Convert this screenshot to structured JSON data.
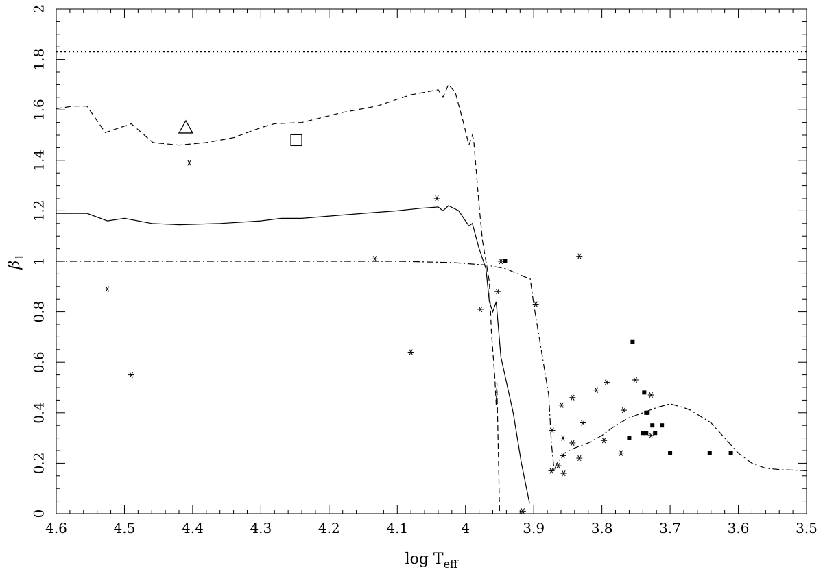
{
  "chart_data": {
    "type": "scatter",
    "title": "",
    "xlabel": {
      "main": "log T",
      "sub": "eff"
    },
    "ylabel": {
      "main": "β",
      "sub": "1"
    },
    "xlim": [
      4.6,
      3.5
    ],
    "ylim": [
      0,
      2
    ],
    "x_ticks": [
      4.6,
      4.5,
      4.4,
      4.3,
      4.2,
      4.1,
      4.0,
      3.9,
      3.8,
      3.7,
      3.6,
      3.5
    ],
    "x_tick_labels": [
      "4.6",
      "4.5",
      "4.4",
      "4.3",
      "4.2",
      "4.1",
      "4",
      "3.9",
      "3.8",
      "3.7",
      "3.6",
      "3.5"
    ],
    "y_ticks": [
      0,
      0.2,
      0.4,
      0.6,
      0.8,
      1.0,
      1.2,
      1.4,
      1.6,
      1.8,
      2.0
    ],
    "y_tick_labels": [
      "0",
      "0.2",
      "0.4",
      "0.6",
      "0.8",
      "1",
      "1.2",
      "1.4",
      "1.6",
      "1.8",
      "2"
    ],
    "grid": false,
    "series": [
      {
        "style": "solid",
        "points": [
          [
            4.6,
            1.19
          ],
          [
            4.555,
            1.19
          ],
          [
            4.525,
            1.16
          ],
          [
            4.5,
            1.17
          ],
          [
            4.46,
            1.15
          ],
          [
            4.42,
            1.145
          ],
          [
            4.36,
            1.15
          ],
          [
            4.3,
            1.16
          ],
          [
            4.27,
            1.17
          ],
          [
            4.24,
            1.17
          ],
          [
            4.15,
            1.19
          ],
          [
            4.1,
            1.2
          ],
          [
            4.065,
            1.21
          ],
          [
            4.04,
            1.215
          ],
          [
            4.033,
            1.2
          ],
          [
            4.025,
            1.22
          ],
          [
            4.01,
            1.2
          ],
          [
            4.0,
            1.16
          ],
          [
            3.995,
            1.14
          ],
          [
            3.99,
            1.15
          ],
          [
            3.98,
            1.05
          ],
          [
            3.97,
            0.97
          ],
          [
            3.965,
            0.84
          ],
          [
            3.96,
            0.8
          ],
          [
            3.955,
            0.84
          ],
          [
            3.948,
            0.62
          ],
          [
            3.93,
            0.4
          ],
          [
            3.918,
            0.2
          ],
          [
            3.906,
            0.04
          ]
        ]
      },
      {
        "style": "dashed",
        "points": [
          [
            4.6,
            1.605
          ],
          [
            4.575,
            1.615
          ],
          [
            4.555,
            1.615
          ],
          [
            4.528,
            1.51
          ],
          [
            4.49,
            1.545
          ],
          [
            4.458,
            1.47
          ],
          [
            4.42,
            1.46
          ],
          [
            4.38,
            1.47
          ],
          [
            4.34,
            1.49
          ],
          [
            4.3,
            1.53
          ],
          [
            4.28,
            1.545
          ],
          [
            4.24,
            1.55
          ],
          [
            4.18,
            1.59
          ],
          [
            4.13,
            1.615
          ],
          [
            4.08,
            1.66
          ],
          [
            4.04,
            1.68
          ],
          [
            4.033,
            1.65
          ],
          [
            4.025,
            1.7
          ],
          [
            4.015,
            1.67
          ],
          [
            4.003,
            1.55
          ],
          [
            3.995,
            1.46
          ],
          [
            3.99,
            1.5
          ],
          [
            3.988,
            1.48
          ],
          [
            3.98,
            1.22
          ],
          [
            3.975,
            1.08
          ],
          [
            3.965,
            0.92
          ],
          [
            3.962,
            0.72
          ],
          [
            3.957,
            0.54
          ],
          [
            3.955,
            0.43
          ],
          [
            3.954,
            0.52
          ],
          [
            3.952,
            0.26
          ],
          [
            3.95,
            0.0
          ]
        ]
      },
      {
        "style": "dashdot",
        "points": [
          [
            4.6,
            1.0
          ],
          [
            4.3,
            1.0
          ],
          [
            4.1,
            1.0
          ],
          [
            4.02,
            0.995
          ],
          [
            3.97,
            0.985
          ],
          [
            3.94,
            0.97
          ],
          [
            3.915,
            0.94
          ],
          [
            3.905,
            0.93
          ],
          [
            3.9,
            0.83
          ],
          [
            3.878,
            0.47
          ],
          [
            3.874,
            0.28
          ],
          [
            3.87,
            0.17
          ],
          [
            3.866,
            0.2
          ],
          [
            3.86,
            0.22
          ],
          [
            3.855,
            0.24
          ],
          [
            3.84,
            0.26
          ],
          [
            3.82,
            0.28
          ],
          [
            3.8,
            0.31
          ],
          [
            3.78,
            0.35
          ],
          [
            3.76,
            0.38
          ],
          [
            3.74,
            0.4
          ],
          [
            3.72,
            0.42
          ],
          [
            3.7,
            0.435
          ],
          [
            3.68,
            0.42
          ],
          [
            3.67,
            0.41
          ],
          [
            3.64,
            0.36
          ],
          [
            3.62,
            0.3
          ],
          [
            3.6,
            0.24
          ],
          [
            3.58,
            0.2
          ],
          [
            3.56,
            0.18
          ],
          [
            3.54,
            0.175
          ],
          [
            3.5,
            0.17
          ]
        ]
      },
      {
        "style": "dotted",
        "points": [
          [
            4.6,
            1.83
          ],
          [
            3.5,
            1.83
          ]
        ]
      }
    ],
    "points_asterisk": [
      [
        4.525,
        0.89
      ],
      [
        4.49,
        0.55
      ],
      [
        4.405,
        1.39
      ],
      [
        4.133,
        1.01
      ],
      [
        4.08,
        0.64
      ],
      [
        4.042,
        1.25
      ],
      [
        3.978,
        0.81
      ],
      [
        3.953,
        0.88
      ],
      [
        3.948,
        1.0
      ],
      [
        3.916,
        0.01
      ],
      [
        3.897,
        0.83
      ],
      [
        3.874,
        0.17
      ],
      [
        3.873,
        0.33
      ],
      [
        3.864,
        0.19
      ],
      [
        3.859,
        0.43
      ],
      [
        3.857,
        0.3
      ],
      [
        3.857,
        0.23
      ],
      [
        3.856,
        0.16
      ],
      [
        3.843,
        0.46
      ],
      [
        3.843,
        0.28
      ],
      [
        3.833,
        1.02
      ],
      [
        3.833,
        0.22
      ],
      [
        3.828,
        0.36
      ],
      [
        3.808,
        0.49
      ],
      [
        3.797,
        0.29
      ],
      [
        3.793,
        0.52
      ],
      [
        3.772,
        0.24
      ],
      [
        3.768,
        0.41
      ],
      [
        3.751,
        0.53
      ],
      [
        3.728,
        0.47
      ],
      [
        3.728,
        0.31
      ]
    ],
    "points_square_filled": [
      [
        3.942,
        1.0
      ],
      [
        3.755,
        0.68
      ],
      [
        3.738,
        0.48
      ],
      [
        3.735,
        0.4
      ],
      [
        3.733,
        0.4
      ],
      [
        3.76,
        0.3
      ],
      [
        3.74,
        0.32
      ],
      [
        3.735,
        0.32
      ],
      [
        3.726,
        0.35
      ],
      [
        3.722,
        0.32
      ],
      [
        3.712,
        0.35
      ],
      [
        3.7,
        0.24
      ],
      [
        3.642,
        0.24
      ],
      [
        3.611,
        0.24
      ]
    ],
    "points_triangle_open": [
      [
        4.41,
        1.53
      ]
    ],
    "points_square_open": [
      [
        4.248,
        1.48
      ]
    ]
  }
}
